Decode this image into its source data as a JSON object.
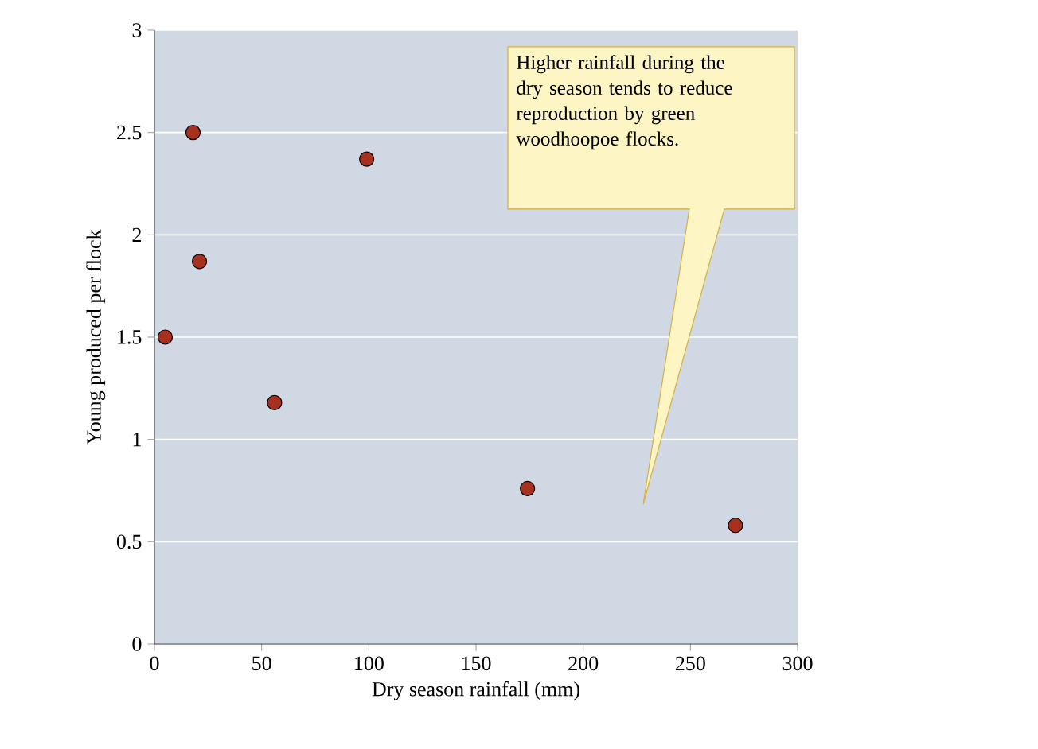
{
  "chart_data": {
    "type": "scatter",
    "xlabel": "Dry season rainfall (mm)",
    "ylabel": "Young produced per flock",
    "x": [
      5,
      18,
      21,
      56,
      99,
      174,
      271
    ],
    "values": [
      1.5,
      2.5,
      1.87,
      1.18,
      2.37,
      0.76,
      0.58
    ],
    "color": "#a8301e",
    "marker": "circle",
    "grid": "y",
    "xlim": [
      0,
      300
    ],
    "ylim": [
      0,
      3
    ],
    "xticks": [
      0,
      50,
      100,
      150,
      200,
      250,
      300
    ],
    "yticks": [
      0,
      0.5,
      1,
      1.5,
      2,
      2.5,
      3
    ],
    "annotations": [
      "Higher rainfall during the dry season tends to reduce reproduction by green woodhoopoe flocks."
    ]
  }
}
